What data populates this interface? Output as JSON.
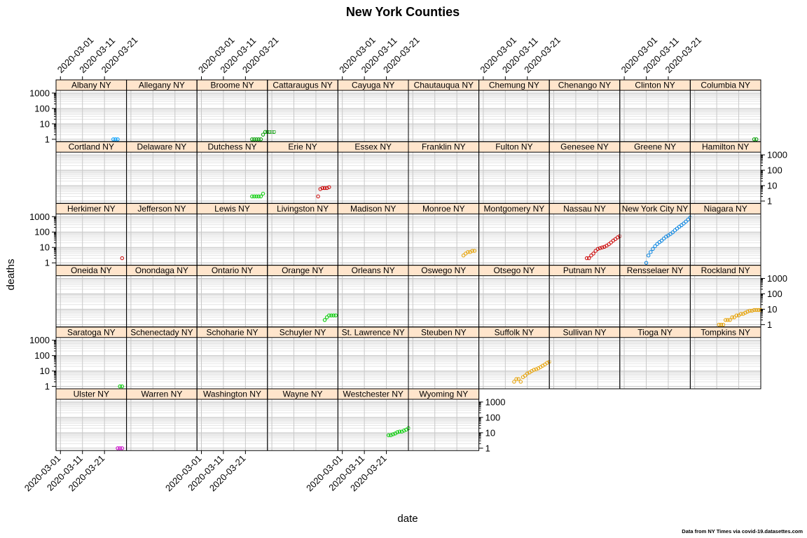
{
  "chart_data": {
    "type": "scatter",
    "title": "New York Counties",
    "xlabel": "date",
    "ylabel": "deaths",
    "caption": "Data from NY Times via covid-19.datasettes.com",
    "y_scale": "log10",
    "ylim": [
      0.7,
      1500
    ],
    "y_ticks": [
      1,
      10,
      100,
      1000
    ],
    "y_tick_labels": [
      "1",
      "10",
      "100",
      "1000"
    ],
    "xlim": [
      "2020-02-28",
      "2020-03-31"
    ],
    "x_ticks": [
      "2020-03-01",
      "2020-03-11",
      "2020-03-21"
    ],
    "x_tick_labels": [
      "2020-03-01",
      "2020-03-11",
      "2020-03-21"
    ],
    "grid": true,
    "layout": {
      "columns": 10,
      "rows": 6
    },
    "panels": [
      {
        "name": "Albany NY",
        "color": "#00a0ff",
        "x": [
          "2020-03-25",
          "2020-03-26",
          "2020-03-27"
        ],
        "y": [
          1,
          1,
          1
        ]
      },
      {
        "name": "Allegany NY",
        "color": "#1f77b4",
        "x": [],
        "y": []
      },
      {
        "name": "Broome NY",
        "color": "#00a000",
        "x": [
          "2020-03-24",
          "2020-03-25",
          "2020-03-26",
          "2020-03-27",
          "2020-03-28",
          "2020-03-29",
          "2020-03-30",
          "2020-03-31",
          "2020-04-01",
          "2020-04-02",
          "2020-04-03"
        ],
        "y": [
          1,
          1,
          1,
          1,
          1,
          2,
          3,
          3,
          3,
          3,
          3
        ]
      },
      {
        "name": "Cattaraugus NY",
        "color": "#1f77b4",
        "x": [],
        "y": []
      },
      {
        "name": "Cayuga NY",
        "color": "#1f77b4",
        "x": [],
        "y": []
      },
      {
        "name": "Chautauqua NY",
        "color": "#1f77b4",
        "x": [],
        "y": []
      },
      {
        "name": "Chemung NY",
        "color": "#1f77b4",
        "x": [],
        "y": []
      },
      {
        "name": "Chenango NY",
        "color": "#1f77b4",
        "x": [],
        "y": []
      },
      {
        "name": "Clinton NY",
        "color": "#1f77b4",
        "x": [],
        "y": []
      },
      {
        "name": "Columbia NY",
        "color": "#00a000",
        "x": [
          "2020-03-28",
          "2020-03-29"
        ],
        "y": [
          1,
          1
        ]
      },
      {
        "name": "Cortland NY",
        "color": "#1f77b4",
        "x": [],
        "y": []
      },
      {
        "name": "Delaware NY",
        "color": "#1f77b4",
        "x": [],
        "y": []
      },
      {
        "name": "Dutchess NY",
        "color": "#00cc00",
        "x": [
          "2020-03-24",
          "2020-03-25",
          "2020-03-26",
          "2020-03-27",
          "2020-03-28",
          "2020-03-29"
        ],
        "y": [
          2,
          2,
          2,
          2,
          2,
          3
        ]
      },
      {
        "name": "Erie NY",
        "color": "#cc0000",
        "x": [
          "2020-03-22",
          "2020-03-23",
          "2020-03-24",
          "2020-03-25",
          "2020-03-26",
          "2020-03-27"
        ],
        "y": [
          2,
          6,
          7,
          7,
          7,
          8
        ]
      },
      {
        "name": "Essex NY",
        "color": "#1f77b4",
        "x": [],
        "y": []
      },
      {
        "name": "Franklin NY",
        "color": "#1f77b4",
        "x": [],
        "y": []
      },
      {
        "name": "Fulton NY",
        "color": "#1f77b4",
        "x": [],
        "y": []
      },
      {
        "name": "Genesee NY",
        "color": "#1f77b4",
        "x": [],
        "y": []
      },
      {
        "name": "Greene NY",
        "color": "#1f77b4",
        "x": [],
        "y": []
      },
      {
        "name": "Hamilton NY",
        "color": "#1f77b4",
        "x": [],
        "y": []
      },
      {
        "name": "Herkimer NY",
        "color": "#cc0000",
        "x": [
          "2020-03-29"
        ],
        "y": [
          2
        ]
      },
      {
        "name": "Jefferson NY",
        "color": "#1f77b4",
        "x": [],
        "y": []
      },
      {
        "name": "Lewis NY",
        "color": "#1f77b4",
        "x": [],
        "y": []
      },
      {
        "name": "Livingston NY",
        "color": "#1f77b4",
        "x": [],
        "y": []
      },
      {
        "name": "Madison NY",
        "color": "#1f77b4",
        "x": [],
        "y": []
      },
      {
        "name": "Monroe NY",
        "color": "#e6a000",
        "x": [
          "2020-03-24",
          "2020-03-25",
          "2020-03-26",
          "2020-03-27",
          "2020-03-28",
          "2020-03-29"
        ],
        "y": [
          3,
          4,
          5,
          5,
          6,
          6
        ]
      },
      {
        "name": "Montgomery NY",
        "color": "#1f77b4",
        "x": [],
        "y": []
      },
      {
        "name": "Nassau NY",
        "color": "#cc0000",
        "x": [
          "2020-03-16",
          "2020-03-17",
          "2020-03-18",
          "2020-03-19",
          "2020-03-20",
          "2020-03-21",
          "2020-03-22",
          "2020-03-23",
          "2020-03-24",
          "2020-03-25",
          "2020-03-26",
          "2020-03-27",
          "2020-03-28",
          "2020-03-29",
          "2020-03-30",
          "2020-03-31"
        ],
        "y": [
          2,
          2,
          3,
          4,
          6,
          8,
          9,
          10,
          11,
          13,
          16,
          21,
          28,
          35,
          45,
          55
        ]
      },
      {
        "name": "New York City NY",
        "color": "#0080e0",
        "x": [
          "2020-03-11",
          "2020-03-12",
          "2020-03-13",
          "2020-03-14",
          "2020-03-15",
          "2020-03-16",
          "2020-03-17",
          "2020-03-18",
          "2020-03-19",
          "2020-03-20",
          "2020-03-21",
          "2020-03-22",
          "2020-03-23",
          "2020-03-24",
          "2020-03-25",
          "2020-03-26",
          "2020-03-27",
          "2020-03-28",
          "2020-03-29",
          "2020-03-30",
          "2020-03-31"
        ],
        "y": [
          1,
          3,
          5,
          8,
          12,
          17,
          22,
          28,
          38,
          50,
          60,
          75,
          95,
          130,
          170,
          220,
          280,
          360,
          480,
          650,
          900
        ]
      },
      {
        "name": "Niagara NY",
        "color": "#1f77b4",
        "x": [],
        "y": []
      },
      {
        "name": "Oneida NY",
        "color": "#1f77b4",
        "x": [],
        "y": []
      },
      {
        "name": "Onondaga NY",
        "color": "#1f77b4",
        "x": [],
        "y": []
      },
      {
        "name": "Ontario NY",
        "color": "#1f77b4",
        "x": [],
        "y": []
      },
      {
        "name": "Orange NY",
        "color": "#00cc00",
        "x": [
          "2020-03-25",
          "2020-03-26",
          "2020-03-27",
          "2020-03-28",
          "2020-03-29",
          "2020-03-30"
        ],
        "y": [
          2,
          3,
          4,
          4,
          4,
          4
        ]
      },
      {
        "name": "Orleans NY",
        "color": "#1f77b4",
        "x": [],
        "y": []
      },
      {
        "name": "Oswego NY",
        "color": "#1f77b4",
        "x": [],
        "y": []
      },
      {
        "name": "Otsego NY",
        "color": "#1f77b4",
        "x": [],
        "y": []
      },
      {
        "name": "Putnam NY",
        "color": "#1f77b4",
        "x": [],
        "y": []
      },
      {
        "name": "Rensselaer NY",
        "color": "#1f77b4",
        "x": [],
        "y": []
      },
      {
        "name": "Rockland NY",
        "color": "#e6a000",
        "x": [
          "2020-03-12",
          "2020-03-13",
          "2020-03-14",
          "2020-03-15",
          "2020-03-16",
          "2020-03-17",
          "2020-03-18",
          "2020-03-19",
          "2020-03-20",
          "2020-03-21",
          "2020-03-22",
          "2020-03-23",
          "2020-03-24",
          "2020-03-25",
          "2020-03-26",
          "2020-03-27",
          "2020-03-28",
          "2020-03-29",
          "2020-03-30",
          "2020-03-31"
        ],
        "y": [
          1,
          1,
          1,
          2,
          2,
          2,
          3,
          3,
          4,
          4,
          5,
          5,
          6,
          7,
          8,
          8,
          9,
          9,
          9,
          9
        ]
      },
      {
        "name": "Saratoga NY",
        "color": "#00cc00",
        "x": [
          "2020-03-28",
          "2020-03-29"
        ],
        "y": [
          1,
          1
        ]
      },
      {
        "name": "Schenectady NY",
        "color": "#1f77b4",
        "x": [],
        "y": []
      },
      {
        "name": "Schoharie NY",
        "color": "#1f77b4",
        "x": [],
        "y": []
      },
      {
        "name": "Schuyler NY",
        "color": "#1f77b4",
        "x": [],
        "y": []
      },
      {
        "name": "St. Lawrence NY",
        "color": "#1f77b4",
        "x": [],
        "y": []
      },
      {
        "name": "Steuben NY",
        "color": "#1f77b4",
        "x": [],
        "y": []
      },
      {
        "name": "Suffolk NY",
        "color": "#e6a000",
        "x": [
          "2020-03-15",
          "2020-03-16",
          "2020-03-17",
          "2020-03-18",
          "2020-03-19",
          "2020-03-20",
          "2020-03-21",
          "2020-03-22",
          "2020-03-23",
          "2020-03-24",
          "2020-03-25",
          "2020-03-26",
          "2020-03-27",
          "2020-03-28",
          "2020-03-29",
          "2020-03-30",
          "2020-03-31"
        ],
        "y": [
          2,
          3,
          3,
          2,
          4,
          5,
          7,
          8,
          10,
          12,
          13,
          15,
          18,
          22,
          27,
          34,
          40
        ]
      },
      {
        "name": "Sullivan NY",
        "color": "#1f77b4",
        "x": [],
        "y": []
      },
      {
        "name": "Tioga NY",
        "color": "#1f77b4",
        "x": [],
        "y": []
      },
      {
        "name": "Tompkins NY",
        "color": "#1f77b4",
        "x": [],
        "y": []
      },
      {
        "name": "Ulster NY",
        "color": "#cc00cc",
        "x": [
          "2020-03-27",
          "2020-03-28",
          "2020-03-29"
        ],
        "y": [
          1,
          1,
          1
        ]
      },
      {
        "name": "Warren NY",
        "color": "#1f77b4",
        "x": [],
        "y": []
      },
      {
        "name": "Washington NY",
        "color": "#1f77b4",
        "x": [],
        "y": []
      },
      {
        "name": "Wayne NY",
        "color": "#1f77b4",
        "x": [],
        "y": []
      },
      {
        "name": "Westchester NY",
        "color": "#00cc00",
        "x": [
          "2020-03-22",
          "2020-03-23",
          "2020-03-24",
          "2020-03-25",
          "2020-03-26",
          "2020-03-27",
          "2020-03-28",
          "2020-03-29",
          "2020-03-30",
          "2020-03-31"
        ],
        "y": [
          7,
          7,
          8,
          9,
          11,
          12,
          12,
          14,
          16,
          20
        ]
      },
      {
        "name": "Wyoming NY",
        "color": "#1f77b4",
        "x": [],
        "y": []
      }
    ]
  }
}
